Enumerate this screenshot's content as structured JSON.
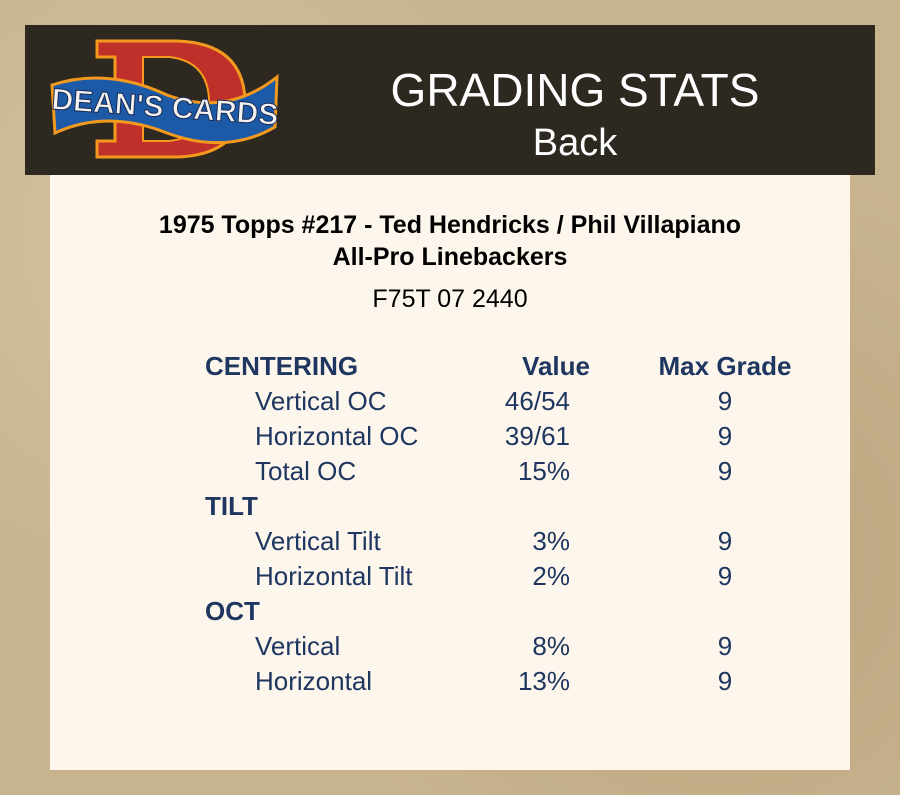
{
  "header": {
    "logo_text": "DEAN'S CARDS",
    "title": "GRADING STATS",
    "subtitle": "Back"
  },
  "card": {
    "line1": "1975 Topps #217  -  Ted Hendricks / Phil Villapiano",
    "line2": "All-Pro Linebackers",
    "code": "F75T 07 2440"
  },
  "table": {
    "col_value": "Value",
    "col_max": "Max Grade",
    "rows": [
      {
        "label": "CENTERING",
        "section": true
      },
      {
        "label": "Vertical OC",
        "value": "46/54",
        "max": "9"
      },
      {
        "label": "Horizontal OC",
        "value": "39/61",
        "max": "9"
      },
      {
        "label": "Total OC",
        "value": "15%",
        "max": "9"
      },
      {
        "label": "TILT",
        "section": true
      },
      {
        "label": "Vertical Tilt",
        "value": "3%",
        "max": "9"
      },
      {
        "label": "Horizontal Tilt",
        "value": "2%",
        "max": "9"
      },
      {
        "label": "OCT",
        "section": true
      },
      {
        "label": "Vertical",
        "value": "8%",
        "max": "9"
      },
      {
        "label": "Horizontal",
        "value": "13%",
        "max": "9"
      }
    ]
  },
  "colors": {
    "text": "#1f3660",
    "header_bg": "#2d2820",
    "panel_bg": "#fcf6ec"
  }
}
